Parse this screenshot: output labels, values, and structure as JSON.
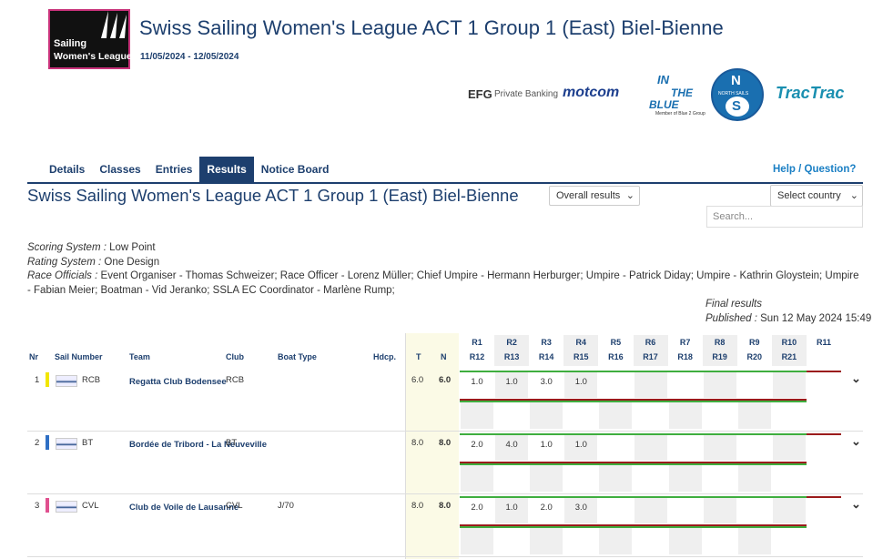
{
  "header": {
    "logo": [
      "Sailing",
      "Women's League"
    ],
    "title": "Swiss Sailing Women's League ACT 1 Group 1 (East) Biel-Bienne",
    "dates": "11/05/2024 - 12/05/2024"
  },
  "sponsors": {
    "efg": "EFG",
    "efg_sub": "Private Banking",
    "motcom": "motcom",
    "blue": [
      "IN",
      "THE",
      "BLUE"
    ],
    "blue_sub": "Member of Blue 2 Group",
    "north": [
      "N",
      "S"
    ],
    "north_sub": "NORTH SAILS",
    "tractrac": "TracTrac"
  },
  "nav": {
    "tabs": [
      "Details",
      "Classes",
      "Entries",
      "Results",
      "Notice Board"
    ],
    "help": "Help / Question?"
  },
  "event": {
    "title": "Swiss Sailing Women's League ACT 1 Group 1 (East) Biel-Bienne",
    "results_select": "Overall results",
    "country_select": "Select country",
    "search": "Search..."
  },
  "info": [
    {
      "label": "Scoring System :",
      "value": "Low Point"
    },
    {
      "label": "Rating System :",
      "value": "One Design"
    },
    {
      "label": "Race Officials :",
      "value": "Event Organiser - Thomas Schweizer; Race Officer - Lorenz Müller; Chief Umpire - Hermann Herburger; Umpire - Patrick Diday; Umpire - Kathrin Gloystein; Umpire - Fabian Meier; Boatman - Vid Jeranko; SSLA EC Coordinator - Marlène Rump;"
    }
  ],
  "status": {
    "final": "Final results",
    "published_label": "Published :",
    "published": "Sun 12 May 2024 15:49"
  },
  "table": {
    "headers": [
      "Nr",
      "Sail Number",
      "Team",
      "Club",
      "Boat Type",
      "Hdcp.",
      "T",
      "N"
    ],
    "races_top": [
      "R1",
      "R2",
      "R3",
      "R4",
      "R5",
      "R6",
      "R7",
      "R8",
      "R9",
      "R10",
      "R11"
    ],
    "races_bottom": [
      "R12",
      "R13",
      "R14",
      "R15",
      "R16",
      "R17",
      "R18",
      "R19",
      "R20",
      "R21"
    ],
    "rows": [
      {
        "nr": "1",
        "sail": "RCB",
        "team": "Regatta Club Bodensee",
        "club": "RCB",
        "boat": "",
        "t": "6.0",
        "n": "6.0",
        "color": "#f2e600",
        "scores": [
          "1.0",
          "1.0",
          "3.0",
          "1.0"
        ]
      },
      {
        "nr": "2",
        "sail": "BT",
        "team": "Bordée de Tribord - La Neuveville",
        "club": "BT",
        "boat": "",
        "t": "8.0",
        "n": "8.0",
        "color": "#2f6fc4",
        "scores": [
          "2.0",
          "4.0",
          "1.0",
          "1.0"
        ]
      },
      {
        "nr": "3",
        "sail": "CVL",
        "team": "Club de Voile de Lausanne",
        "club": "CVL",
        "boat": "J/70",
        "t": "8.0",
        "n": "8.0",
        "color": "#e0508f",
        "scores": [
          "2.0",
          "1.0",
          "2.0",
          "3.0"
        ]
      }
    ]
  }
}
